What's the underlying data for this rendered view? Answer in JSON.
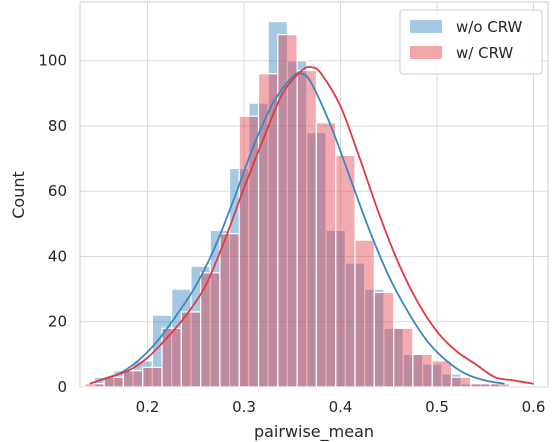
{
  "chart_data": {
    "type": "bar",
    "xlabel": "pairwise_mean",
    "ylabel": "Count",
    "xlim": [
      0.13,
      0.615
    ],
    "ylim": [
      0,
      118
    ],
    "xticks": [
      "0.2",
      "0.3",
      "0.4",
      "0.5",
      "0.6"
    ],
    "xtick_values": [
      0.2,
      0.3,
      0.4,
      0.5,
      0.6
    ],
    "yticks": [
      "0",
      "20",
      "40",
      "60",
      "80",
      "100"
    ],
    "ytick_values": [
      0,
      20,
      40,
      60,
      80,
      100
    ],
    "grid": true,
    "legend_position": "top-right",
    "series": [
      {
        "name": "w/o CRW",
        "color": "#3a87c2",
        "bin_start": 0.145,
        "bin_width": 0.02,
        "values": [
          3,
          5,
          8,
          22,
          30,
          37,
          48,
          67,
          87,
          112,
          100,
          78,
          48,
          38,
          30,
          18,
          10,
          7,
          4,
          1,
          1
        ]
      },
      {
        "name": "w/ CRW",
        "color": "#e03a43",
        "bin_start": 0.135,
        "bin_width": 0.02,
        "values": [
          1,
          3,
          5,
          6,
          18,
          23,
          35,
          47,
          83,
          96,
          108,
          97,
          81,
          71,
          45,
          29,
          18,
          10,
          8,
          3,
          1,
          1
        ]
      }
    ],
    "kde": [
      {
        "name": "w/o CRW",
        "color": "#3a87c2",
        "x": [
          0.15,
          0.17,
          0.19,
          0.21,
          0.23,
          0.25,
          0.27,
          0.29,
          0.31,
          0.33,
          0.35,
          0.36,
          0.37,
          0.39,
          0.41,
          0.43,
          0.45,
          0.47,
          0.49,
          0.51,
          0.53,
          0.55,
          0.57
        ],
        "values": [
          2,
          4,
          8,
          14,
          22,
          31,
          43,
          58,
          74,
          87,
          95,
          96,
          93,
          80,
          64,
          48,
          34,
          23,
          14,
          8,
          4,
          2,
          1
        ]
      },
      {
        "name": "w/ CRW",
        "color": "#e03a43",
        "x": [
          0.14,
          0.16,
          0.18,
          0.2,
          0.22,
          0.24,
          0.26,
          0.28,
          0.3,
          0.32,
          0.34,
          0.36,
          0.37,
          0.38,
          0.4,
          0.42,
          0.44,
          0.46,
          0.48,
          0.5,
          0.52,
          0.54,
          0.56,
          0.58,
          0.6
        ],
        "values": [
          1,
          3,
          5,
          9,
          15,
          22,
          31,
          45,
          61,
          76,
          90,
          97,
          98,
          96,
          86,
          70,
          53,
          38,
          26,
          17,
          11,
          7,
          3,
          2,
          1
        ]
      }
    ]
  }
}
